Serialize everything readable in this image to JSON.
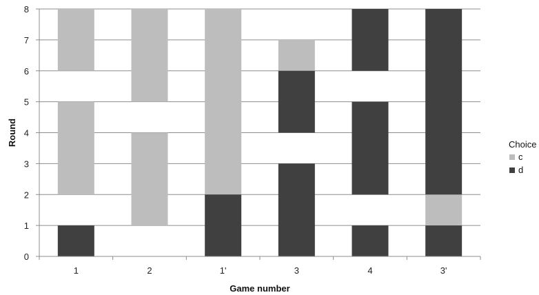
{
  "chart_data": {
    "type": "bar",
    "chart_variant": "stacked-floating-range",
    "categories": [
      "1",
      "2",
      "1'",
      "3",
      "4",
      "3'"
    ],
    "xlabel": "Game number",
    "ylabel": "Round",
    "ylim": [
      0,
      8
    ],
    "yticks": [
      "0",
      "1",
      "2",
      "3",
      "4",
      "5",
      "6",
      "7",
      "8"
    ],
    "grid": true,
    "legend": {
      "title": "Choice",
      "position": "right",
      "entries": [
        {
          "name": "c",
          "color": "#bdbdbd"
        },
        {
          "name": "d",
          "color": "#404040"
        }
      ]
    },
    "series": [
      {
        "name": "c",
        "color": "#bdbdbd",
        "ranges": [
          {
            "category": "1",
            "from": 2,
            "to": 5
          },
          {
            "category": "1",
            "from": 6,
            "to": 8
          },
          {
            "category": "2",
            "from": 1,
            "to": 4
          },
          {
            "category": "2",
            "from": 5,
            "to": 8
          },
          {
            "category": "1'",
            "from": 2,
            "to": 8
          },
          {
            "category": "3",
            "from": 6,
            "to": 7
          },
          {
            "category": "3'",
            "from": 1,
            "to": 2
          }
        ]
      },
      {
        "name": "d",
        "color": "#404040",
        "ranges": [
          {
            "category": "1",
            "from": 0,
            "to": 1
          },
          {
            "category": "1'",
            "from": 0,
            "to": 2
          },
          {
            "category": "3",
            "from": 0,
            "to": 3
          },
          {
            "category": "3",
            "from": 4,
            "to": 6
          },
          {
            "category": "4",
            "from": 0,
            "to": 1
          },
          {
            "category": "4",
            "from": 2,
            "to": 5
          },
          {
            "category": "4",
            "from": 6,
            "to": 8
          },
          {
            "category": "3'",
            "from": 0,
            "to": 1
          },
          {
            "category": "3'",
            "from": 2,
            "to": 8
          }
        ]
      }
    ]
  }
}
